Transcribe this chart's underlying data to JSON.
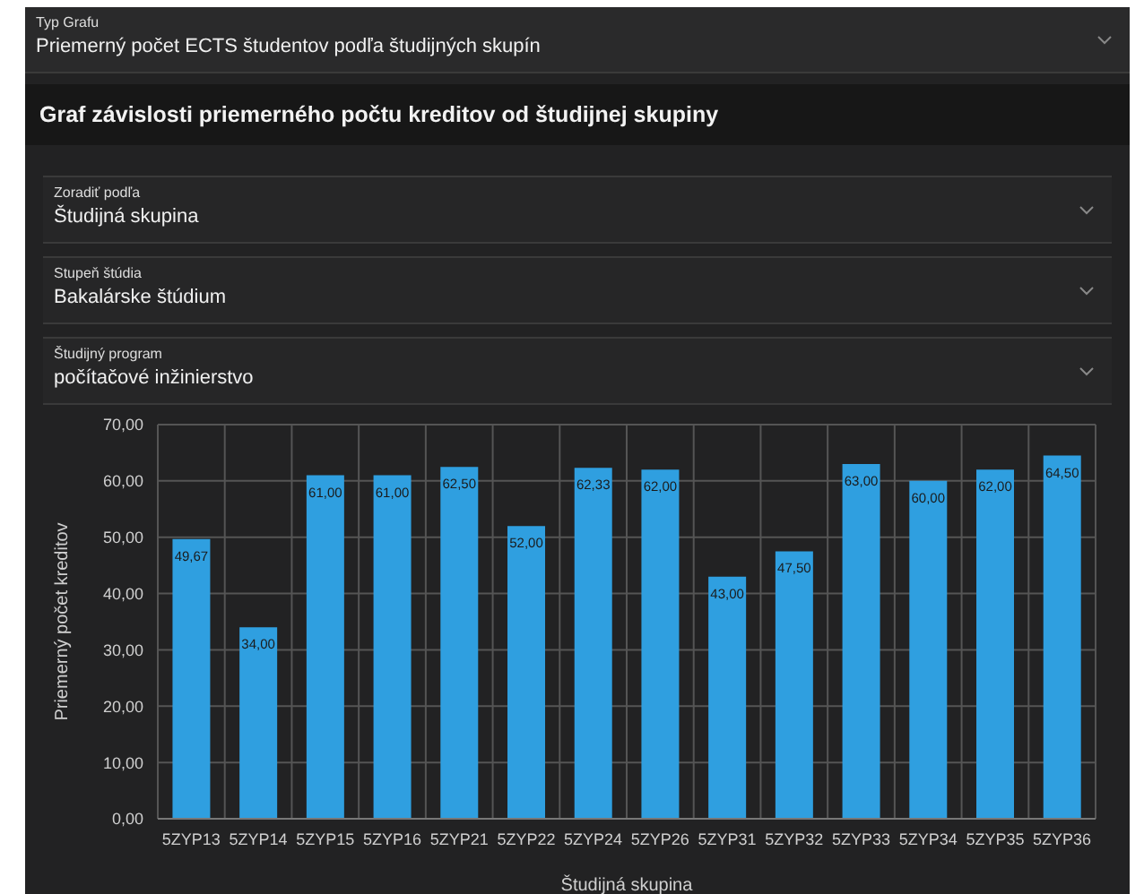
{
  "chart_data": {
    "type": "bar",
    "title": "Graf závislosti priemerného počtu kreditov od študijnej skupiny",
    "annotations": [
      "Typ Grafu",
      "Priemerný počet ECTS študentov podľa študijných skupín",
      "Zoradiť podľa",
      "Študijná skupina",
      "Stupeň štúdia",
      "Bakalárske štúdium",
      "Študijný program",
      "počítačové inžinierstvo"
    ],
    "xlabel": "Študijná skupina",
    "ylabel": "Priemerný počet kreditov",
    "categories": [
      "5ZYP13",
      "5ZYP14",
      "5ZYP15",
      "5ZYP16",
      "5ZYP21",
      "5ZYP22",
      "5ZYP24",
      "5ZYP26",
      "5ZYP31",
      "5ZYP32",
      "5ZYP33",
      "5ZYP34",
      "5ZYP35",
      "5ZYP36"
    ],
    "values": [
      49.67,
      34,
      61,
      61,
      62.5,
      52,
      62.33,
      62,
      43,
      47.5,
      63,
      60,
      62,
      64.5
    ],
    "value_labels": [
      "49,67",
      "34,00",
      "61,00",
      "61,00",
      "62,50",
      "52,00",
      "62,33",
      "62,00",
      "43,00",
      "47,50",
      "63,00",
      "60,00",
      "62,00",
      "64,50"
    ],
    "color": "#2f9fe0",
    "ylim": [
      0,
      70
    ],
    "yticks": [
      {
        "value": 0,
        "label": "0,00"
      },
      {
        "value": 10,
        "label": "10,00"
      },
      {
        "value": 20,
        "label": "20,00"
      },
      {
        "value": 30,
        "label": "30,00"
      },
      {
        "value": 40,
        "label": "40,00"
      },
      {
        "value": 50,
        "label": "50,00"
      },
      {
        "value": 60,
        "label": "60,00"
      },
      {
        "value": 70,
        "label": "70,00"
      }
    ],
    "grid": true
  }
}
